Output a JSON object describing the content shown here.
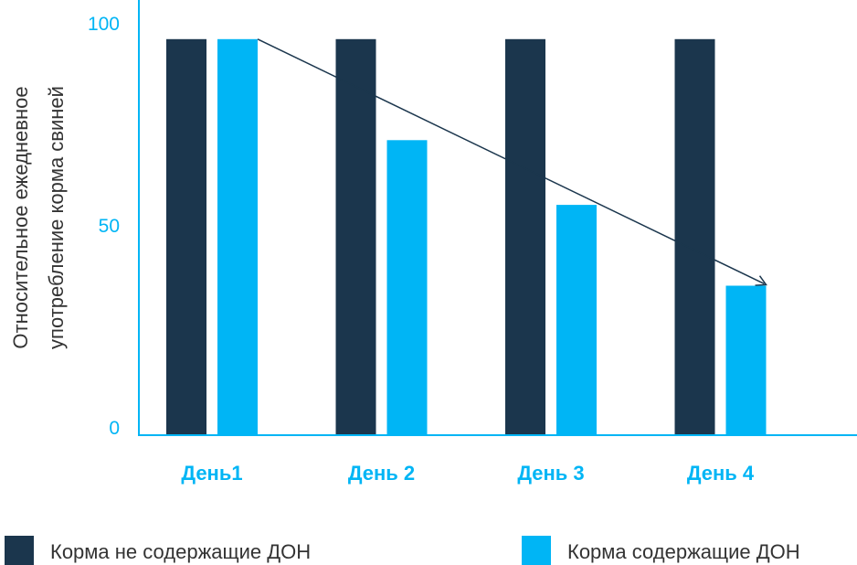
{
  "chart_data": {
    "type": "bar",
    "categories": [
      "День1",
      "День 2",
      "День 3",
      "День 4"
    ],
    "series": [
      {
        "name": "Корма не содержащие ДОН",
        "color": "#1b364d",
        "values": [
          98,
          98,
          98,
          98
        ]
      },
      {
        "name": "Корма содержащие ДОН",
        "color": "#00b5f5",
        "values": [
          98,
          73,
          57,
          37
        ]
      }
    ],
    "ylabel": [
      "Относительное ежедневное",
      "употребление корма свиней"
    ],
    "yticks": [
      0,
      50,
      100
    ],
    "ylim": [
      0,
      100
    ],
    "grid": false,
    "legend_position": "bottom",
    "trend_arrow": {
      "from_category": 0,
      "to_category": 3,
      "from_value": 98,
      "to_value": 37
    }
  }
}
